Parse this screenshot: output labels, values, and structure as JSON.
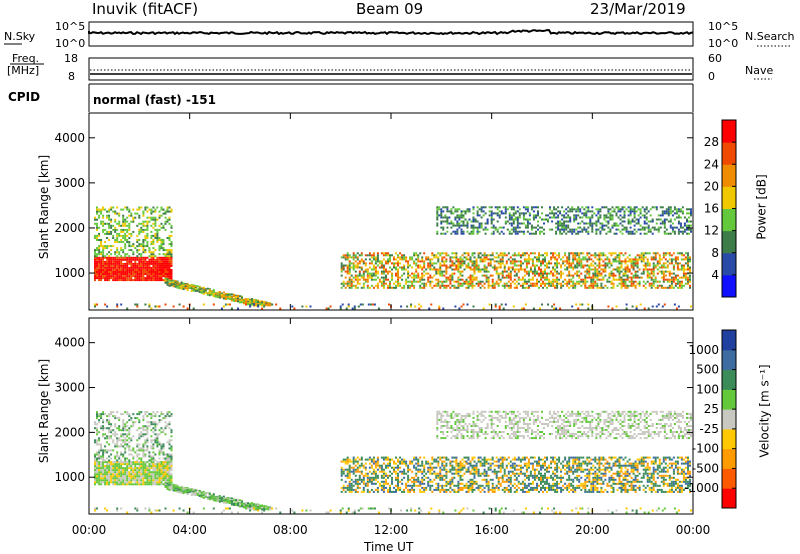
{
  "header": {
    "station": "Inuvik (fitACF)",
    "beam": "Beam 09",
    "date": "23/Mar/2019"
  },
  "strip_labels": {
    "nsky": "N.Sky",
    "nsky_top": "10^5",
    "nsky_bottom": "10^0",
    "nsearch": "N.Search",
    "nsearch_top": "10^5",
    "nsearch_bottom": "10^0",
    "freq_line1": "Freq.",
    "freq_line2": "[MHz]",
    "freq_top": "18",
    "freq_bottom": "8",
    "nave": "Nave",
    "nave_top": "60",
    "nave_bottom": "0",
    "cpid": "CPID",
    "mode": "normal (fast) -151"
  },
  "colors": {
    "power": [
      "#1010ff",
      "#2a4aa8",
      "#3c7c48",
      "#64c83c",
      "#f0c800",
      "#f08c00",
      "#f04a00",
      "#ff0000"
    ],
    "velocity": [
      "#ff0000",
      "#ff5a00",
      "#ff9a00",
      "#ffc800",
      "#c8c8c0",
      "#64c83c",
      "#3c8c5a",
      "#3c6ca0",
      "#2040a0"
    ]
  },
  "chart_data": [
    {
      "type": "heatmap",
      "name": "power",
      "ylabel": "Slant Range [km]",
      "xlabel": "",
      "colorbar_label": "Power [dB]",
      "colorbar_ticks": [
        "4",
        "8",
        "12",
        "16",
        "20",
        "24",
        "28"
      ],
      "y_ticks": [
        "1000",
        "2000",
        "3000",
        "4000"
      ],
      "ylim": [
        180,
        4550
      ],
      "xlim_hours": [
        0,
        24
      ]
    },
    {
      "type": "heatmap",
      "name": "velocity",
      "ylabel": "Slant Range [km]",
      "xlabel": "Time UT",
      "colorbar_label": "Velocity [m s⁻¹]",
      "colorbar_ticks": [
        "-1000",
        "-500",
        "-100",
        "-25",
        "25",
        "100",
        "500",
        "1000"
      ],
      "y_ticks": [
        "1000",
        "2000",
        "3000",
        "4000"
      ],
      "ylim": [
        180,
        4550
      ],
      "xlim_hours": [
        0,
        24
      ],
      "x_ticks": [
        "00:00",
        "04:00",
        "08:00",
        "12:00",
        "16:00",
        "20:00",
        "00:00"
      ]
    }
  ]
}
